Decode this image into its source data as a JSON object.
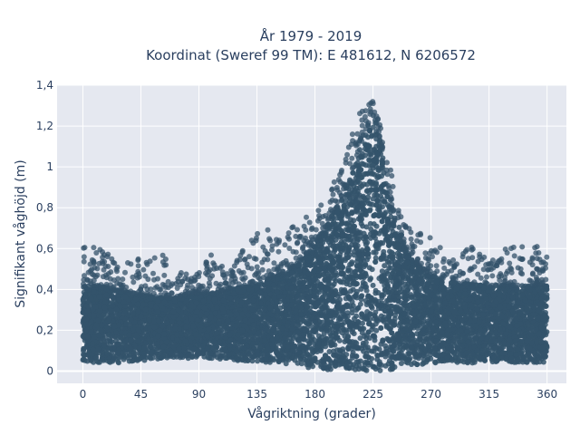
{
  "chart_data": {
    "type": "scatter",
    "title_line1": "År 1979 - 2019",
    "title_line2": "Koordinat (Sweref 99 TM): E 481612, N 6206572",
    "xlabel": "Vågriktning (grader)",
    "ylabel": "Signifikant våghöjd (m)",
    "xlim": [
      -20,
      375
    ],
    "ylim": [
      -0.06,
      1.4
    ],
    "x_ticks": [
      0,
      45,
      90,
      135,
      180,
      225,
      270,
      315,
      360
    ],
    "x_tick_labels": [
      "0",
      "45",
      "90",
      "135",
      "180",
      "225",
      "270",
      "315",
      "360"
    ],
    "y_ticks": [
      0,
      0.2,
      0.4,
      0.6,
      0.8,
      1.0,
      1.2,
      1.4
    ],
    "y_tick_labels": [
      "0",
      "0,2",
      "0,4",
      "0,6",
      "0,8",
      "1",
      "1,2",
      "1,4"
    ],
    "grid": true,
    "marker_color": "#34536b",
    "plot_bg": "#e5e8f0",
    "envelope": {
      "direction": [
        0,
        10,
        20,
        30,
        40,
        50,
        60,
        70,
        80,
        90,
        100,
        110,
        120,
        130,
        140,
        150,
        160,
        170,
        180,
        190,
        200,
        210,
        220,
        225,
        230,
        240,
        250,
        260,
        270,
        280,
        290,
        300,
        310,
        320,
        330,
        340,
        350,
        360
      ],
      "lower": [
        0.04,
        0.04,
        0.04,
        0.04,
        0.05,
        0.05,
        0.06,
        0.06,
        0.06,
        0.07,
        0.06,
        0.06,
        0.05,
        0.05,
        0.04,
        0.04,
        0.03,
        0.02,
        0.01,
        0.0,
        0.0,
        0.0,
        0.0,
        0.0,
        0.0,
        0.0,
        0.02,
        0.03,
        0.04,
        0.04,
        0.04,
        0.04,
        0.04,
        0.04,
        0.04,
        0.04,
        0.04,
        0.04
      ],
      "dense_upper": [
        0.42,
        0.42,
        0.41,
        0.4,
        0.38,
        0.37,
        0.36,
        0.36,
        0.37,
        0.38,
        0.38,
        0.4,
        0.41,
        0.42,
        0.44,
        0.47,
        0.5,
        0.55,
        0.62,
        0.72,
        0.85,
        1.0,
        1.18,
        1.3,
        1.15,
        0.8,
        0.62,
        0.52,
        0.47,
        0.44,
        0.43,
        0.43,
        0.42,
        0.42,
        0.42,
        0.42,
        0.42,
        0.42
      ],
      "max": [
        0.61,
        0.61,
        0.6,
        0.52,
        0.58,
        0.55,
        0.6,
        0.48,
        0.5,
        0.48,
        0.58,
        0.5,
        0.55,
        0.68,
        0.72,
        0.65,
        0.7,
        0.74,
        0.78,
        0.86,
        1.0,
        1.2,
        1.33,
        1.34,
        1.22,
        0.95,
        0.72,
        0.68,
        0.66,
        0.6,
        0.55,
        0.62,
        0.56,
        0.55,
        0.62,
        0.61,
        0.61,
        0.61
      ]
    }
  }
}
